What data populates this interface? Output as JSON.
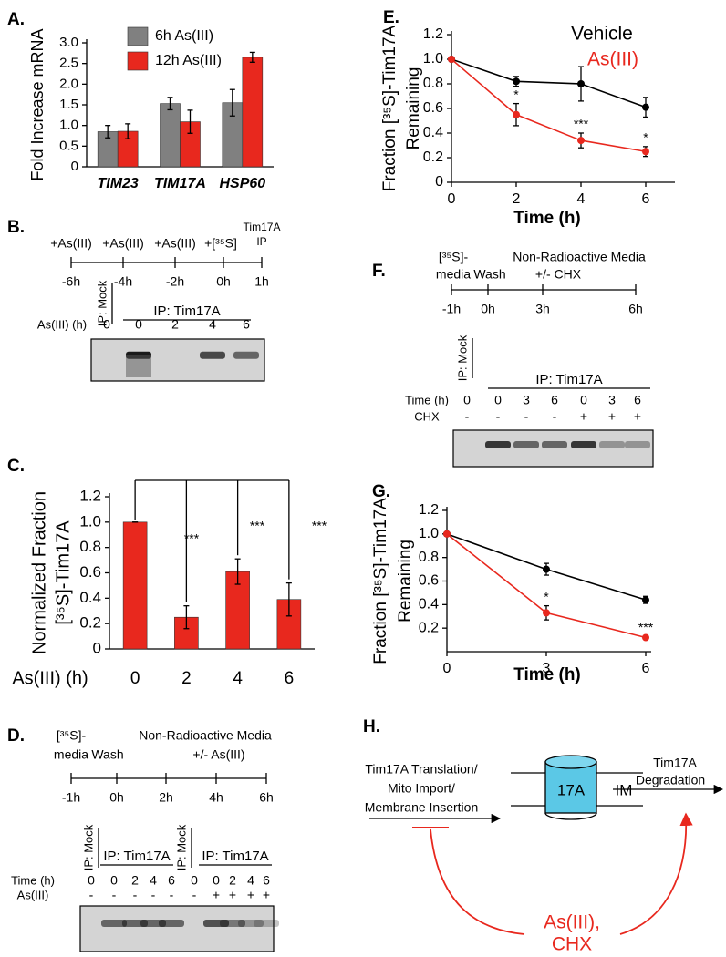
{
  "figure_labels": [
    "A.",
    "B.",
    "C.",
    "D.",
    "E.",
    "F.",
    "G.",
    "H."
  ],
  "chart_data": [
    {
      "type": "bar",
      "ylabel": [
        "Fold Increase mRNA"
      ],
      "categories": [
        "TIM23",
        "TIM17A",
        "HSP60"
      ],
      "series": [
        {
          "name": "6h As(III)",
          "color": "#808080",
          "values": [
            0.85,
            1.53,
            1.55
          ],
          "errors": [
            0.15,
            0.15,
            0.32
          ]
        },
        {
          "name": "12h As(III)",
          "color": "#e8281e",
          "values": [
            0.86,
            1.09,
            2.65
          ],
          "errors": [
            0.18,
            0.28,
            0.12
          ]
        }
      ],
      "ylim": [
        0,
        3
      ],
      "yticks": [
        0,
        0.5,
        {
          "value": 1,
          "label": "1.0"
        },
        {
          "value": 1.5,
          "label": "1.5"
        },
        {
          "value": 2,
          "label": "2.0"
        },
        {
          "value": 2.5,
          "label": "2.5"
        },
        {
          "value": 3,
          "label": "3.0"
        }
      ],
      "legend": "upper left"
    },
    {
      "type": "bar",
      "ylabel": [
        "Normalized Fraction",
        "[³⁵S]-Tim17A"
      ],
      "xlabel": "As(III) (h)",
      "categories": [
        "0",
        "2",
        "4",
        "6"
      ],
      "values": [
        1.0,
        0.25,
        0.61,
        0.39
      ],
      "errors": [
        0,
        0.09,
        0.1,
        0.13
      ],
      "color": "#e8281e",
      "ylim": [
        0,
        1.2
      ],
      "yticks": [
        0,
        0.2,
        0.4,
        0.6,
        0.8,
        {
          "value": 1,
          "label": "1.0"
        },
        1.2
      ],
      "annotations": [
        "***",
        "***",
        "***"
      ]
    },
    {
      "type": "line",
      "ylabel": [
        "Fraction [³⁵S]-Tim17A",
        "Remaining"
      ],
      "xlabel": "Time (h)",
      "x": [
        0,
        2,
        4,
        6
      ],
      "series": [
        {
          "name": "Vehicle",
          "color": "#000000",
          "values": [
            1.0,
            0.82,
            0.8,
            0.61
          ],
          "errors": [
            0,
            0.04,
            0.14,
            0.08
          ]
        },
        {
          "name": "As(III)",
          "color": "#e8281e",
          "values": [
            1.0,
            0.55,
            0.34,
            0.25
          ],
          "errors": [
            0,
            0.09,
            0.06,
            0.04
          ]
        }
      ],
      "xlim": [
        0,
        6
      ],
      "xticks": [
        0,
        2,
        4,
        6
      ],
      "ylim": [
        0,
        1.2
      ],
      "yticks": [
        0,
        0.2,
        0.4,
        0.6,
        0.8,
        {
          "value": 1,
          "label": "1.0"
        },
        1.2
      ],
      "annotations": [
        "*",
        "***",
        "*"
      ],
      "legend": "upper right"
    },
    {
      "type": "line",
      "ylabel": [
        "Fraction [³⁵S]-Tim17A",
        "Remaining"
      ],
      "xlabel": "Time (h)",
      "x": [
        0,
        3,
        6
      ],
      "series": [
        {
          "color": "#000000",
          "values": [
            1.0,
            0.7,
            0.44
          ],
          "errors": [
            0,
            0.05,
            0.03
          ]
        },
        {
          "color": "#e8281e",
          "values": [
            1.0,
            0.33,
            0.12
          ],
          "errors": [
            0,
            0.06,
            0.01
          ]
        }
      ],
      "xlim": [
        0,
        6
      ],
      "xticks": [
        0,
        3,
        6
      ],
      "ylim": [
        0,
        1.2
      ],
      "yticks": [
        0.2,
        0.4,
        0.6,
        0.8,
        {
          "value": 1,
          "label": "1.0"
        },
        1.2
      ],
      "annotations": [
        "*",
        "***"
      ]
    }
  ],
  "timelines": {
    "B": {
      "top": [
        "+As(III)",
        "+As(III)",
        "+As(III)",
        "+[³⁵S]",
        "Tim17A",
        "IP"
      ],
      "bottom": [
        "-6h",
        "-4h",
        "-2h",
        "0h",
        "1h"
      ]
    },
    "D": {
      "top": [
        "[³⁵S]-",
        "media",
        "Wash",
        "Non-Radioactive Media",
        "+/- As(III)"
      ],
      "bottom": [
        "-1h",
        "0h",
        "2h",
        "4h",
        "6h"
      ]
    },
    "F": {
      "top": [
        "[³⁵S]-",
        "media",
        "Wash",
        "Non-Radioactive Media",
        "+/- CHX"
      ],
      "bottom": [
        "-1h",
        "0h",
        "3h",
        "6h"
      ]
    }
  },
  "gels": {
    "B": {
      "headers": [
        "IP: Mock",
        "IP: Tim17A"
      ],
      "row_labels": [
        "As(III) (h)"
      ],
      "rows": [
        [
          "0",
          "0",
          "2",
          "4",
          "6"
        ]
      ]
    },
    "D": {
      "headers": [
        "IP: Mock",
        "IP: Tim17A",
        "IP: Mock",
        "IP: Tim17A"
      ],
      "row_labels": [
        "Time (h)",
        "As(III)"
      ],
      "rows": [
        [
          "0",
          "0",
          "2",
          "4",
          "6",
          "0",
          "0",
          "2",
          "4",
          "6"
        ],
        [
          "-",
          "-",
          "-",
          "-",
          "-",
          "-",
          "+",
          "+",
          "+",
          "+"
        ]
      ]
    },
    "F": {
      "headers": [
        "IP: Mock",
        "IP: Tim17A"
      ],
      "row_labels": [
        "Time (h)",
        "CHX"
      ],
      "rows": [
        [
          "0",
          "0",
          "3",
          "6",
          "0",
          "3",
          "6"
        ],
        [
          "-",
          "-",
          "-",
          "-",
          "+",
          "+",
          "+"
        ]
      ]
    }
  },
  "diagram_h": {
    "left": [
      "Tim17A Translation/",
      "Mito Import/",
      "Membrane Insertion"
    ],
    "protein": "17A",
    "membrane": "IM",
    "right": [
      "Tim17A",
      "Degradation"
    ],
    "inhibitor": [
      "As(III),",
      "CHX"
    ]
  }
}
